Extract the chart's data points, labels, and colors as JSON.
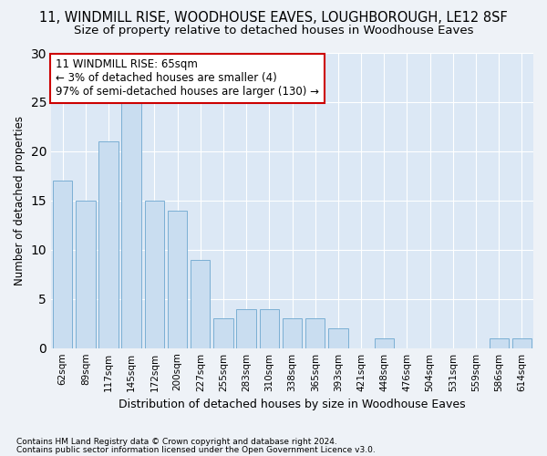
{
  "title": "11, WINDMILL RISE, WOODHOUSE EAVES, LOUGHBOROUGH, LE12 8SF",
  "subtitle": "Size of property relative to detached houses in Woodhouse Eaves",
  "xlabel": "Distribution of detached houses by size in Woodhouse Eaves",
  "ylabel": "Number of detached properties",
  "categories": [
    "62sqm",
    "89sqm",
    "117sqm",
    "145sqm",
    "172sqm",
    "200sqm",
    "227sqm",
    "255sqm",
    "283sqm",
    "310sqm",
    "338sqm",
    "365sqm",
    "393sqm",
    "421sqm",
    "448sqm",
    "476sqm",
    "504sqm",
    "531sqm",
    "559sqm",
    "586sqm",
    "614sqm"
  ],
  "values": [
    17,
    15,
    21,
    25,
    15,
    14,
    9,
    3,
    4,
    4,
    3,
    3,
    2,
    0,
    1,
    0,
    0,
    0,
    0,
    1,
    1
  ],
  "bar_color": "#c9ddf0",
  "bar_edge_color": "#7bafd4",
  "annotation_box_text": "11 WINDMILL RISE: 65sqm\n← 3% of detached houses are smaller (4)\n97% of semi-detached houses are larger (130) →",
  "annotation_box_color": "#cc0000",
  "annotation_box_fill": "#ffffff",
  "footnote1": "Contains HM Land Registry data © Crown copyright and database right 2024.",
  "footnote2": "Contains public sector information licensed under the Open Government Licence v3.0.",
  "ylim": [
    0,
    30
  ],
  "yticks": [
    0,
    5,
    10,
    15,
    20,
    25,
    30
  ],
  "background_color": "#eef2f7",
  "plot_background_color": "#dce8f5",
  "title_fontsize": 10.5,
  "subtitle_fontsize": 9.5,
  "grid_color": "#ffffff"
}
